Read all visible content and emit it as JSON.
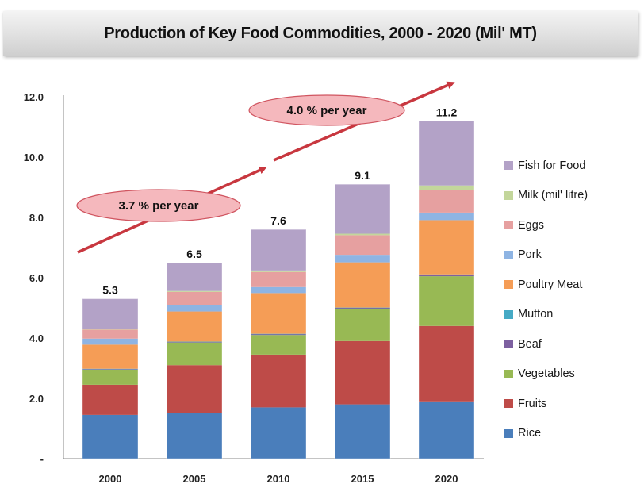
{
  "chart_data": {
    "type": "bar",
    "stacked": true,
    "title": "Production of Key Food Commodities, 2000 - 2020 (Mil' MT)",
    "xlabel": "",
    "ylabel": "",
    "categories": [
      "2000",
      "2005",
      "2010",
      "2015",
      "2020"
    ],
    "ylim": [
      0,
      12
    ],
    "yticks": [
      0,
      2,
      4,
      6,
      8,
      10,
      12
    ],
    "ytick_labels": [
      "-",
      "2.0",
      "4.0",
      "6.0",
      "8.0",
      "10.0",
      "12.0"
    ],
    "grid": false,
    "legend_position": "right",
    "series": [
      {
        "name": "Rice",
        "color": "#4a7ebb",
        "values": [
          1.45,
          1.5,
          1.7,
          1.8,
          1.9
        ]
      },
      {
        "name": "Fruits",
        "color": "#be4b48",
        "values": [
          1.0,
          1.6,
          1.75,
          2.1,
          2.5
        ]
      },
      {
        "name": "Vegetables",
        "color": "#98b954",
        "values": [
          0.5,
          0.75,
          0.65,
          1.05,
          1.65
        ]
      },
      {
        "name": "Beaf",
        "color": "#7d60a0",
        "values": [
          0.02,
          0.02,
          0.03,
          0.05,
          0.05
        ]
      },
      {
        "name": "Mutton",
        "color": "#46aac5",
        "values": [
          0.01,
          0.01,
          0.01,
          0.01,
          0.01
        ]
      },
      {
        "name": "Poultry Meat",
        "color": "#f59d56",
        "values": [
          0.8,
          1.0,
          1.35,
          1.5,
          1.8
        ]
      },
      {
        "name": "Pork",
        "color": "#8eb4e3",
        "values": [
          0.2,
          0.2,
          0.2,
          0.25,
          0.25
        ]
      },
      {
        "name": "Eggs",
        "color": "#e6a0a0",
        "values": [
          0.3,
          0.45,
          0.5,
          0.65,
          0.75
        ]
      },
      {
        "name": "Milk (mil' litre)",
        "color": "#c3d69b",
        "values": [
          0.03,
          0.03,
          0.05,
          0.05,
          0.15
        ]
      },
      {
        "name": "Fish for Food",
        "color": "#b3a2c7",
        "values": [
          0.99,
          0.94,
          1.36,
          1.64,
          2.14
        ]
      }
    ],
    "totals": [
      "5.3",
      "6.5",
      "7.6",
      "9.1",
      "11.2"
    ],
    "annotations": [
      {
        "text": "3.7 % per year",
        "from": "2000",
        "to": "2010"
      },
      {
        "text": "4.0 % per year",
        "from": "2010",
        "to": "2020"
      }
    ]
  },
  "legend_order": [
    "Fish for Food",
    "Milk (mil' litre)",
    "Eggs",
    "Pork",
    "Poultry Meat",
    "Mutton",
    "Beaf",
    "Vegetables",
    "Fruits",
    "Rice"
  ],
  "colors": {
    "arrow": "#c8373f",
    "ellipse_fill": "#f5b8bd",
    "ellipse_stroke": "#d05560",
    "axis": "#888888"
  }
}
